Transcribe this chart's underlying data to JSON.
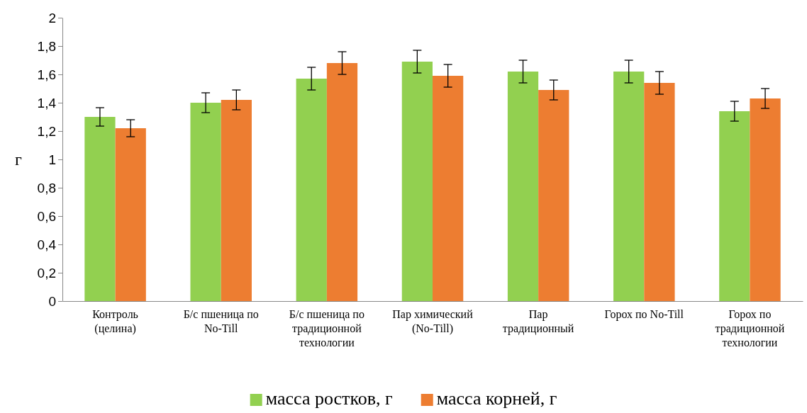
{
  "chart_data": {
    "type": "bar",
    "ylabel": "г",
    "categories": [
      "Контроль (целина)",
      "Б/с пшеница по No-Till",
      "Б/с пшеница по традиционной технологии",
      "Пар химический (No-Till)",
      "Пар традиционный",
      "Горох по No-Till",
      "Горох по традиционной технологии"
    ],
    "series": [
      {
        "name": "масса ростков, г",
        "color": "#92d050",
        "values": [
          1.3,
          1.4,
          1.57,
          1.69,
          1.62,
          1.62,
          1.34
        ],
        "errors": [
          0.065,
          0.07,
          0.08,
          0.08,
          0.08,
          0.08,
          0.07
        ]
      },
      {
        "name": "масса корней, г",
        "color": "#ed7d31",
        "values": [
          1.22,
          1.42,
          1.68,
          1.59,
          1.49,
          1.54,
          1.43
        ],
        "errors": [
          0.06,
          0.07,
          0.08,
          0.08,
          0.07,
          0.08,
          0.07
        ]
      }
    ],
    "ylim": [
      0,
      2
    ],
    "yticks": [
      0,
      {
        "value": 0.2,
        "label": "0,2"
      },
      {
        "value": 0.4,
        "label": "0,4"
      },
      {
        "value": 0.6,
        "label": "0,6"
      },
      {
        "value": 0.8,
        "label": "0,8"
      },
      1,
      {
        "value": 1.2,
        "label": "1,2"
      },
      {
        "value": 1.4,
        "label": "1,4"
      },
      {
        "value": 1.6,
        "label": "1,6"
      },
      {
        "value": 1.8,
        "label": "1,8"
      },
      2
    ],
    "grid": false,
    "legend": "bottom"
  }
}
